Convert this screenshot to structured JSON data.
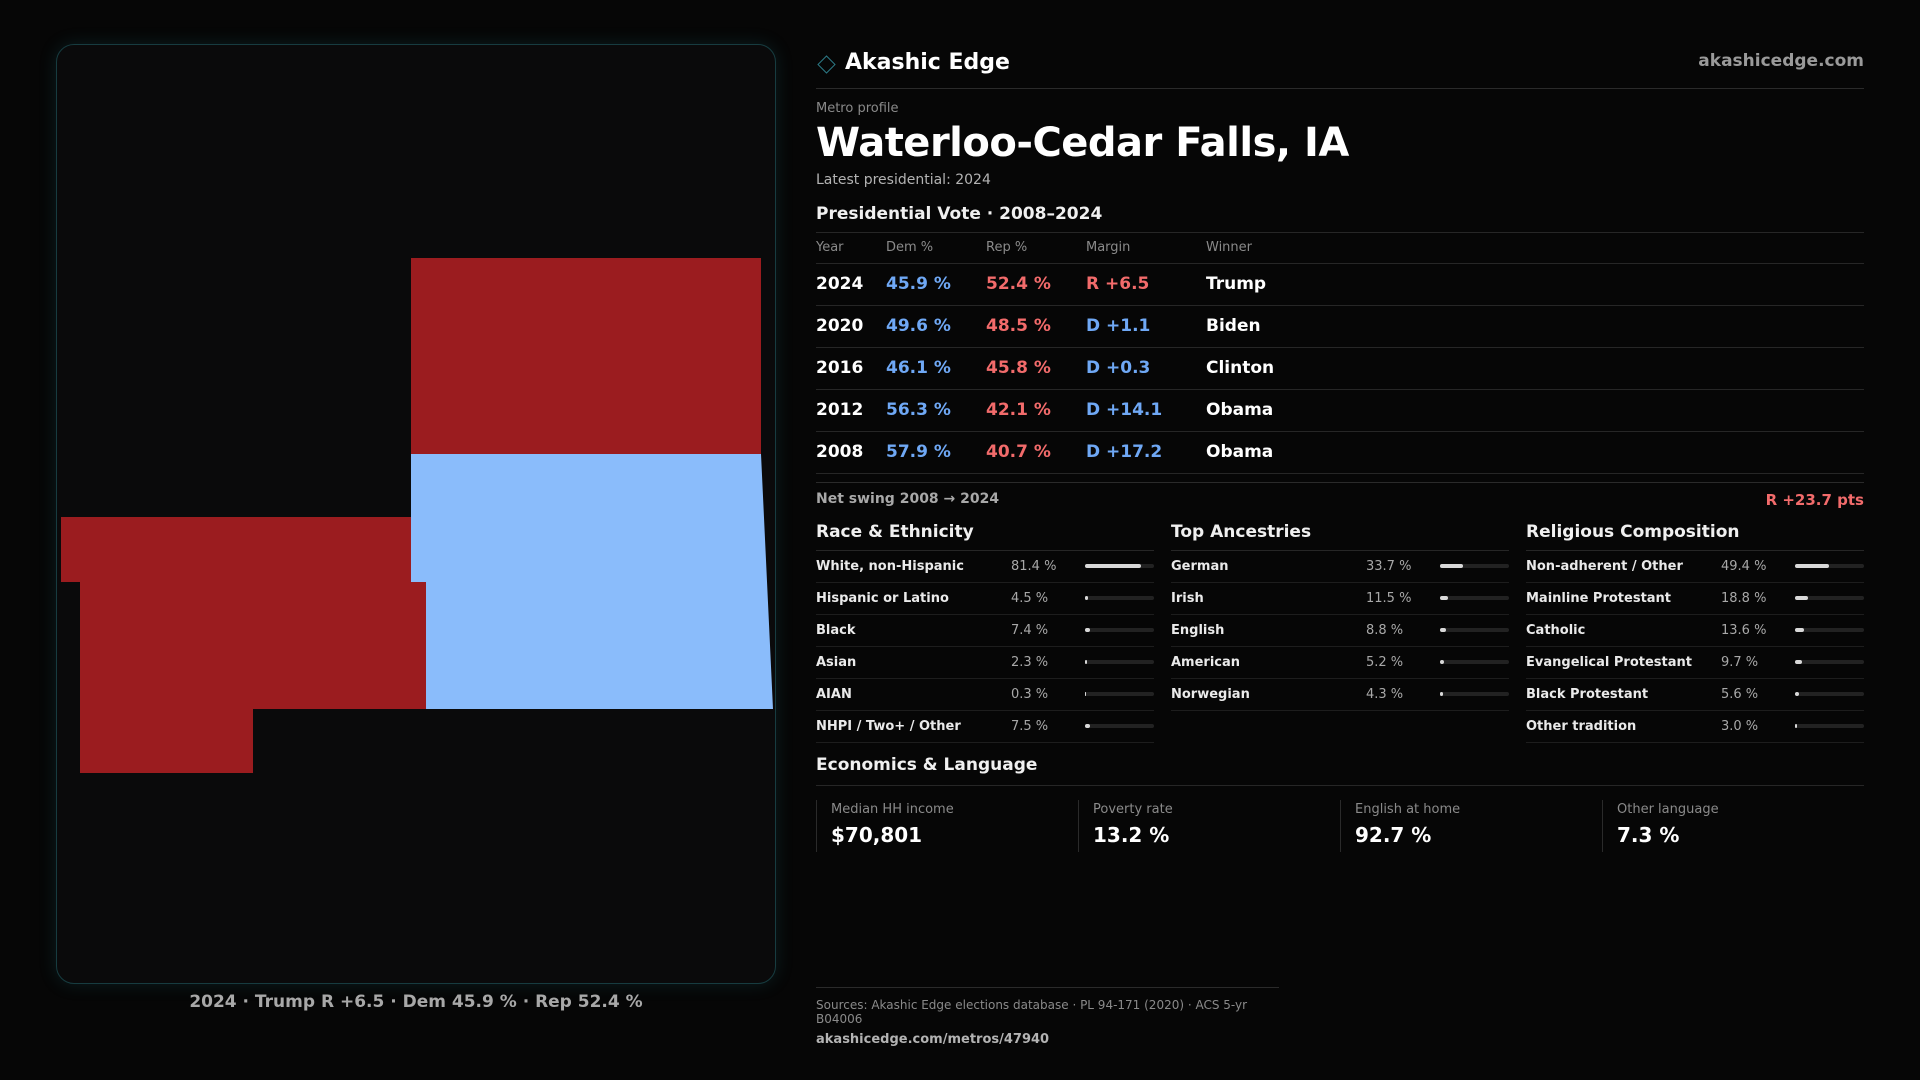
{
  "brand": {
    "name": "Akashic Edge",
    "url": "akashicedge.com",
    "accent": "#2c7a86"
  },
  "profile": {
    "eyebrow": "Metro profile",
    "title": "Waterloo-Cedar Falls, IA",
    "subtitle": "Latest presidential: 2024"
  },
  "map": {
    "colors": {
      "rep": "#9b1c1f",
      "dem": "#8abcfb"
    },
    "caption": "2024 · Trump R +6.5 · Dem 45.9 % · Rep 52.4 %"
  },
  "votes": {
    "heading": "Presidential Vote · 2008–2024",
    "columns": [
      "Year",
      "Dem %",
      "Rep %",
      "Margin",
      "Winner"
    ],
    "rows": [
      {
        "year": "2024",
        "dem": "45.9 %",
        "rep": "52.4 %",
        "margin": "R +6.5",
        "winner": "Trump"
      },
      {
        "year": "2020",
        "dem": "49.6 %",
        "rep": "48.5 %",
        "margin": "D +1.1",
        "winner": "Biden"
      },
      {
        "year": "2016",
        "dem": "46.1 %",
        "rep": "45.8 %",
        "margin": "D +0.3",
        "winner": "Clinton"
      },
      {
        "year": "2012",
        "dem": "56.3 %",
        "rep": "42.1 %",
        "margin": "D +14.1",
        "winner": "Obama"
      },
      {
        "year": "2008",
        "dem": "57.9 %",
        "rep": "40.7 %",
        "margin": "D +17.2",
        "winner": "Obama"
      }
    ],
    "swing_label": "Net swing 2008 → 2024",
    "swing_value": "R +23.7 pts"
  },
  "race": {
    "heading": "Race & Ethnicity",
    "items": [
      {
        "label": "White, non-Hispanic",
        "value": "81.4 %",
        "pct": 81.4
      },
      {
        "label": "Hispanic or Latino",
        "value": "4.5 %",
        "pct": 4.5
      },
      {
        "label": "Black",
        "value": "7.4 %",
        "pct": 7.4
      },
      {
        "label": "Asian",
        "value": "2.3 %",
        "pct": 2.3
      },
      {
        "label": "AIAN",
        "value": "0.3 %",
        "pct": 0.3
      },
      {
        "label": "NHPI / Two+ / Other",
        "value": "7.5 %",
        "pct": 7.5
      }
    ]
  },
  "ancestry": {
    "heading": "Top Ancestries",
    "items": [
      {
        "label": "German",
        "value": "33.7 %",
        "pct": 33.7
      },
      {
        "label": "Irish",
        "value": "11.5 %",
        "pct": 11.5
      },
      {
        "label": "English",
        "value": "8.8 %",
        "pct": 8.8
      },
      {
        "label": "American",
        "value": "5.2 %",
        "pct": 5.2
      },
      {
        "label": "Norwegian",
        "value": "4.3 %",
        "pct": 4.3
      }
    ]
  },
  "religion": {
    "heading": "Religious Composition",
    "items": [
      {
        "label": "Non-adherent / Other",
        "value": "49.4 %",
        "pct": 49.4
      },
      {
        "label": "Mainline Protestant",
        "value": "18.8 %",
        "pct": 18.8
      },
      {
        "label": "Catholic",
        "value": "13.6 %",
        "pct": 13.6
      },
      {
        "label": "Evangelical Protestant",
        "value": "9.7 %",
        "pct": 9.7
      },
      {
        "label": "Black Protestant",
        "value": "5.6 %",
        "pct": 5.6
      },
      {
        "label": "Other tradition",
        "value": "3.0 %",
        "pct": 3.0
      }
    ]
  },
  "economics": {
    "heading": "Economics & Language",
    "stats": [
      {
        "label": "Median HH income",
        "value": "$70,801"
      },
      {
        "label": "Poverty rate",
        "value": "13.2 %"
      },
      {
        "label": "English at home",
        "value": "92.7 %"
      },
      {
        "label": "Other language",
        "value": "7.3 %"
      }
    ]
  },
  "footer": {
    "sources": "Sources: Akashic Edge elections database · PL 94-171 (2020) · ACS 5-yr B04006",
    "url": "akashicedge.com/metros/47940"
  }
}
